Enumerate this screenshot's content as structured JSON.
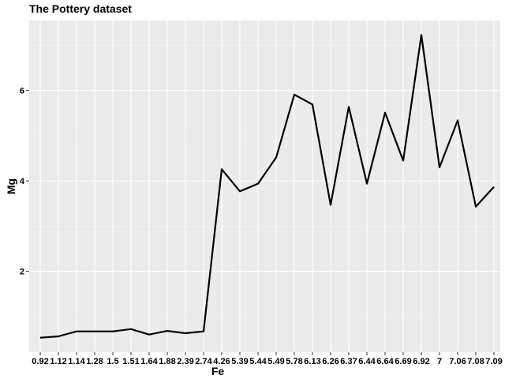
{
  "chart_data": {
    "type": "line",
    "title": "The Pottery dataset",
    "xlabel": "Fe",
    "ylabel": "Mg",
    "x_is_categorical": true,
    "categories": [
      "0.92",
      "1.12",
      "1.14",
      "1.28",
      "1.5",
      "1.51",
      "1.64",
      "1.88",
      "2.39",
      "2.74",
      "4.26",
      "5.39",
      "5.44",
      "5.49",
      "5.78",
      "6.13",
      "6.26",
      "6.37",
      "6.44",
      "6.64",
      "6.69",
      "6.92",
      "7",
      "7.06",
      "7.08",
      "7.09"
    ],
    "series": [
      {
        "values": [
          0.53,
          0.56,
          0.67,
          0.67,
          0.67,
          0.72,
          0.6,
          0.68,
          0.63,
          0.67,
          4.26,
          3.77,
          3.94,
          4.52,
          5.91,
          5.69,
          3.47,
          5.64,
          3.94,
          5.51,
          4.45,
          7.23,
          4.3,
          5.34,
          3.43,
          3.87
        ]
      }
    ],
    "yticks": [
      2,
      4,
      6
    ],
    "ylim": [
      0.21,
      7.55
    ],
    "grid": true,
    "legend": "none",
    "colors": {
      "panel": "#ebebeb",
      "grid_major": "#ffffff",
      "line": "#000000",
      "ticks": "#333333"
    }
  }
}
